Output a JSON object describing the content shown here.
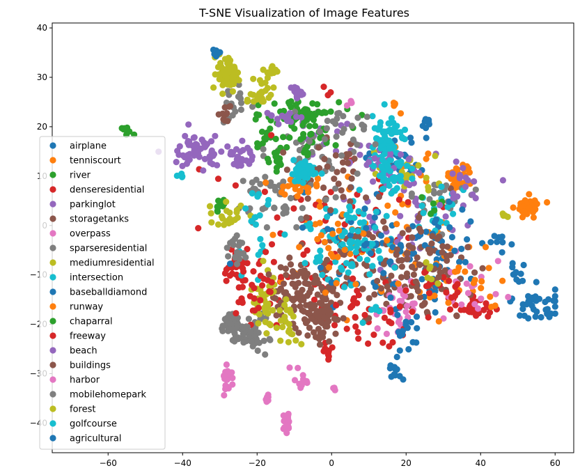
{
  "chart_data": {
    "type": "scatter",
    "title": "T-SNE Visualization of Image Features",
    "xlabel": "",
    "ylabel": "",
    "xlim": [
      -75,
      65
    ],
    "ylim": [
      -46,
      41
    ],
    "xticks": [
      -60,
      -40,
      -20,
      0,
      20,
      40,
      60
    ],
    "yticks": [
      -40,
      -30,
      -20,
      -10,
      0,
      10,
      20,
      30,
      40
    ],
    "legend_position": "lower-left",
    "grid": false,
    "series": [
      {
        "name": "airplane",
        "color": "#1f77b4",
        "clusters": [
          [
            20,
            -8,
            14,
            9,
            40
          ],
          [
            55,
            -16,
            5,
            3,
            40
          ],
          [
            50,
            -10,
            2,
            3,
            10
          ],
          [
            17,
            -29,
            2,
            2,
            12
          ],
          [
            25,
            21,
            2,
            1,
            8
          ],
          [
            18,
            14,
            6,
            4,
            25
          ]
        ]
      },
      {
        "name": "tenniscourt",
        "color": "#ff7f0e",
        "clusters": [
          [
            53,
            4,
            2.5,
            1.5,
            40
          ],
          [
            34,
            10,
            3,
            2.5,
            40
          ],
          [
            20,
            0,
            18,
            14,
            50
          ],
          [
            17,
            25,
            0.5,
            1,
            4
          ]
        ]
      },
      {
        "name": "river",
        "color": "#2ca02c",
        "clusters": [
          [
            -55,
            19,
            1.5,
            1,
            8
          ],
          [
            -30,
            4,
            1.5,
            1,
            10
          ],
          [
            -8,
            23,
            8,
            3,
            50
          ],
          [
            -18,
            18,
            2,
            2,
            10
          ]
        ]
      },
      {
        "name": "denseresidential",
        "color": "#d62728",
        "clusters": [
          [
            -26,
            -8,
            3,
            2,
            30
          ],
          [
            -5,
            -10,
            20,
            10,
            45
          ],
          [
            38,
            -17,
            6,
            2,
            30
          ],
          [
            5,
            5,
            25,
            10,
            35
          ],
          [
            -1,
            27,
            1,
            1,
            3
          ]
        ]
      },
      {
        "name": "parkinglot",
        "color": "#9467bd",
        "clusters": [
          [
            -36,
            15,
            6,
            3,
            60
          ],
          [
            -9,
            27,
            2,
            1,
            15
          ],
          [
            20,
            3,
            15,
            10,
            40
          ],
          [
            0,
            17,
            10,
            4,
            25
          ]
        ]
      },
      {
        "name": "storagetanks",
        "color": "#8c564b",
        "clusters": [
          [
            -5,
            -15,
            10,
            6,
            60
          ],
          [
            15,
            -10,
            15,
            8,
            60
          ],
          [
            5,
            0,
            20,
            12,
            40
          ],
          [
            25,
            -10,
            12,
            8,
            30
          ]
        ]
      },
      {
        "name": "overpass",
        "color": "#e377c2",
        "clusters": [
          [
            -28,
            -31,
            1.5,
            2,
            25
          ],
          [
            -12,
            -40,
            1,
            2,
            22
          ],
          [
            -8,
            -32,
            1.5,
            1,
            12
          ],
          [
            -17,
            -35,
            1,
            1,
            6
          ],
          [
            18,
            -16,
            5,
            5,
            30
          ],
          [
            38,
            -14,
            6,
            6,
            20
          ],
          [
            1,
            -33,
            1,
            0.5,
            3
          ]
        ]
      },
      {
        "name": "sparseresidential",
        "color": "#7f7f7f",
        "clusters": [
          [
            -27,
            -20,
            2,
            2,
            40
          ],
          [
            -20,
            -22,
            2,
            3,
            30
          ],
          [
            -18,
            5,
            8,
            6,
            40
          ],
          [
            -25,
            25,
            3,
            3,
            20
          ],
          [
            -5,
            15,
            10,
            6,
            40
          ],
          [
            30,
            5,
            8,
            5,
            20
          ]
        ]
      },
      {
        "name": "mediumresidential",
        "color": "#bcbd22",
        "clusters": [
          [
            -28,
            31,
            2.5,
            3,
            60
          ],
          [
            -19,
            27,
            3,
            2,
            25
          ],
          [
            -18,
            -15,
            3,
            5,
            35
          ],
          [
            -28,
            2,
            4,
            2,
            20
          ],
          [
            20,
            10,
            10,
            5,
            20
          ]
        ]
      },
      {
        "name": "intersection",
        "color": "#17becf",
        "clusters": [
          [
            15,
            17,
            4,
            4,
            60
          ],
          [
            -8,
            11,
            3,
            2,
            30
          ],
          [
            5,
            -5,
            10,
            8,
            50
          ],
          [
            -20,
            0,
            5,
            8,
            20
          ],
          [
            30,
            4,
            6,
            4,
            20
          ]
        ]
      },
      {
        "name": "baseballdiamond",
        "color": "#1f77b4",
        "clusters": [
          [
            10,
            -3,
            15,
            9,
            40
          ],
          [
            30,
            -5,
            10,
            5,
            30
          ]
        ]
      },
      {
        "name": "runway",
        "color": "#ff7f0e",
        "clusters": [
          [
            -10,
            8,
            6,
            2,
            25
          ],
          [
            0,
            -5,
            10,
            8,
            25
          ],
          [
            30,
            -12,
            10,
            6,
            15
          ],
          [
            43,
            -10,
            3,
            6,
            8
          ]
        ]
      },
      {
        "name": "chaparral",
        "color": "#2ca02c",
        "clusters": [
          [
            -7,
            19,
            8,
            4,
            40
          ],
          [
            -15,
            13,
            3,
            3,
            15
          ],
          [
            28,
            4,
            3,
            2,
            6
          ]
        ]
      },
      {
        "name": "freeway",
        "color": "#d62728",
        "clusters": [
          [
            -22,
            -12,
            6,
            6,
            30
          ],
          [
            10,
            -20,
            12,
            6,
            30
          ],
          [
            28,
            -12,
            10,
            5,
            20
          ],
          [
            -1,
            -26,
            1,
            2,
            8
          ]
        ]
      },
      {
        "name": "beach",
        "color": "#9467bd",
        "clusters": [
          [
            -25,
            14,
            3,
            3,
            25
          ],
          [
            15,
            12,
            6,
            4,
            25
          ],
          [
            35,
            8,
            5,
            4,
            15
          ],
          [
            -13,
            22,
            4,
            2,
            15
          ]
        ]
      },
      {
        "name": "buildings",
        "color": "#8c564b",
        "clusters": [
          [
            -3,
            -20,
            4,
            4,
            50
          ],
          [
            -10,
            -12,
            5,
            5,
            40
          ],
          [
            24,
            -6,
            8,
            6,
            40
          ],
          [
            0,
            10,
            8,
            6,
            30
          ],
          [
            -28,
            22,
            2,
            2,
            10
          ]
        ]
      },
      {
        "name": "harbor",
        "color": "#e377c2",
        "clusters": [
          [
            -10,
            -28,
            1,
            1,
            2
          ],
          [
            5,
            25,
            1,
            1,
            3
          ]
        ]
      },
      {
        "name": "mobilehomepark",
        "color": "#7f7f7f",
        "clusters": [
          [
            -24,
            -22,
            3,
            2,
            30
          ],
          [
            -26,
            -4,
            3,
            4,
            20
          ],
          [
            5,
            20,
            8,
            3,
            20
          ]
        ]
      },
      {
        "name": "forest",
        "color": "#bcbd22",
        "clusters": [
          [
            -12,
            -20,
            3,
            3,
            25
          ],
          [
            -17,
            31,
            2,
            1,
            10
          ],
          [
            27,
            -9,
            2,
            3,
            6
          ],
          [
            46,
            2,
            2,
            1,
            4
          ]
        ]
      },
      {
        "name": "golfcourse",
        "color": "#17becf",
        "clusters": [
          [
            16,
            11,
            4,
            4,
            40
          ],
          [
            -8,
            10,
            4,
            2,
            20
          ],
          [
            5,
            -3,
            8,
            6,
            30
          ],
          [
            -40,
            10,
            1,
            1,
            4
          ],
          [
            12,
            -17,
            1,
            1,
            4
          ]
        ]
      },
      {
        "name": "agricultural",
        "color": "#1f77b4",
        "clusters": [
          [
            -31,
            35,
            1,
            1,
            8
          ],
          [
            45,
            -3,
            3,
            2,
            6
          ],
          [
            20,
            -22,
            4,
            3,
            15
          ]
        ]
      }
    ]
  }
}
